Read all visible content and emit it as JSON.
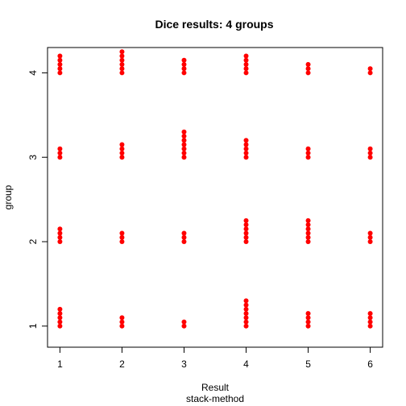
{
  "chart_data": {
    "type": "scatter",
    "title": "Dice results: 4 groups",
    "xlabel": "Result",
    "sublabel": "stack-method",
    "ylabel": "group",
    "xlim": [
      0.8,
      6.2
    ],
    "ylim": [
      0.75,
      4.3
    ],
    "xticks": [
      1,
      2,
      3,
      4,
      5,
      6
    ],
    "yticks": [
      1,
      2,
      3,
      4
    ],
    "grid": false,
    "marker_color": "#ff0000",
    "stack_step": 0.05,
    "counts": [
      {
        "group": 1,
        "values": [
          5,
          3,
          2,
          7,
          4,
          4
        ]
      },
      {
        "group": 2,
        "values": [
          4,
          3,
          3,
          6,
          6,
          3
        ]
      },
      {
        "group": 3,
        "values": [
          3,
          4,
          7,
          5,
          3,
          3
        ]
      },
      {
        "group": 4,
        "values": [
          5,
          6,
          4,
          5,
          3,
          2
        ]
      }
    ]
  }
}
